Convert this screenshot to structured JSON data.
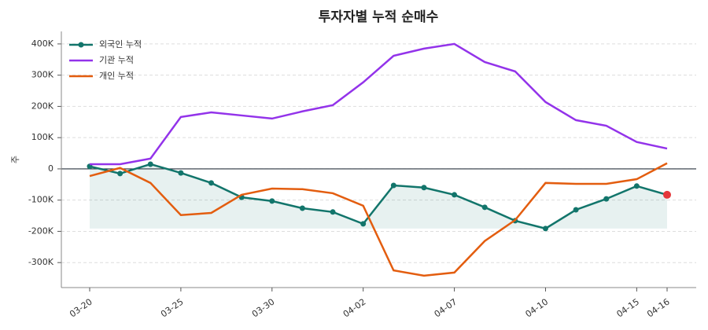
{
  "chart_data": {
    "type": "line",
    "title": "투자자별 누적 순매수",
    "y_label": "주",
    "categories": [
      "03-20",
      null,
      null,
      "03-25",
      null,
      null,
      "03-30",
      null,
      null,
      "04-02",
      null,
      null,
      "04-07",
      null,
      null,
      "04-10",
      null,
      null,
      "04-15",
      "04-16"
    ],
    "series": [
      {
        "name": "외국인 누적",
        "color": "#12756b",
        "marker": true,
        "fill": true,
        "highlight_last": "#e5383b",
        "values": [
          8000,
          -15000,
          15000,
          -13000,
          -45000,
          -91000,
          -103000,
          -126000,
          -138000,
          -176000,
          -53000,
          -60000,
          -83000,
          -123000,
          -166000,
          -191000,
          -131000,
          -96000,
          -55000,
          -83000
        ]
      },
      {
        "name": "기관 누적",
        "color": "#9333ea",
        "values": [
          15000,
          15000,
          33000,
          166000,
          181000,
          171000,
          161000,
          184000,
          204000,
          277000,
          362000,
          385000,
          400000,
          342000,
          312000,
          214000,
          156000,
          138000,
          86000,
          65000
        ]
      },
      {
        "name": "개인 누적",
        "color": "#e35d0f",
        "values": [
          -23000,
          3000,
          -45000,
          -148000,
          -141000,
          -83000,
          -63000,
          -65000,
          -78000,
          -118000,
          -325000,
          -342000,
          -332000,
          -231000,
          -164000,
          -45000,
          -48000,
          -48000,
          -33000,
          18000
        ]
      }
    ],
    "ylim": [
      -380000,
      440000
    ],
    "yticks": [
      {
        "value": -300000,
        "label": "-300K"
      },
      {
        "value": -200000,
        "label": "-200K"
      },
      {
        "value": -100000,
        "label": "-100K"
      },
      0,
      {
        "value": 100000,
        "label": "100K"
      },
      {
        "value": 200000,
        "label": "200K"
      },
      {
        "value": 300000,
        "label": "300K"
      },
      {
        "value": 400000,
        "label": "400K"
      }
    ],
    "grid": true,
    "zero_line": true,
    "legend": "upper-left"
  }
}
